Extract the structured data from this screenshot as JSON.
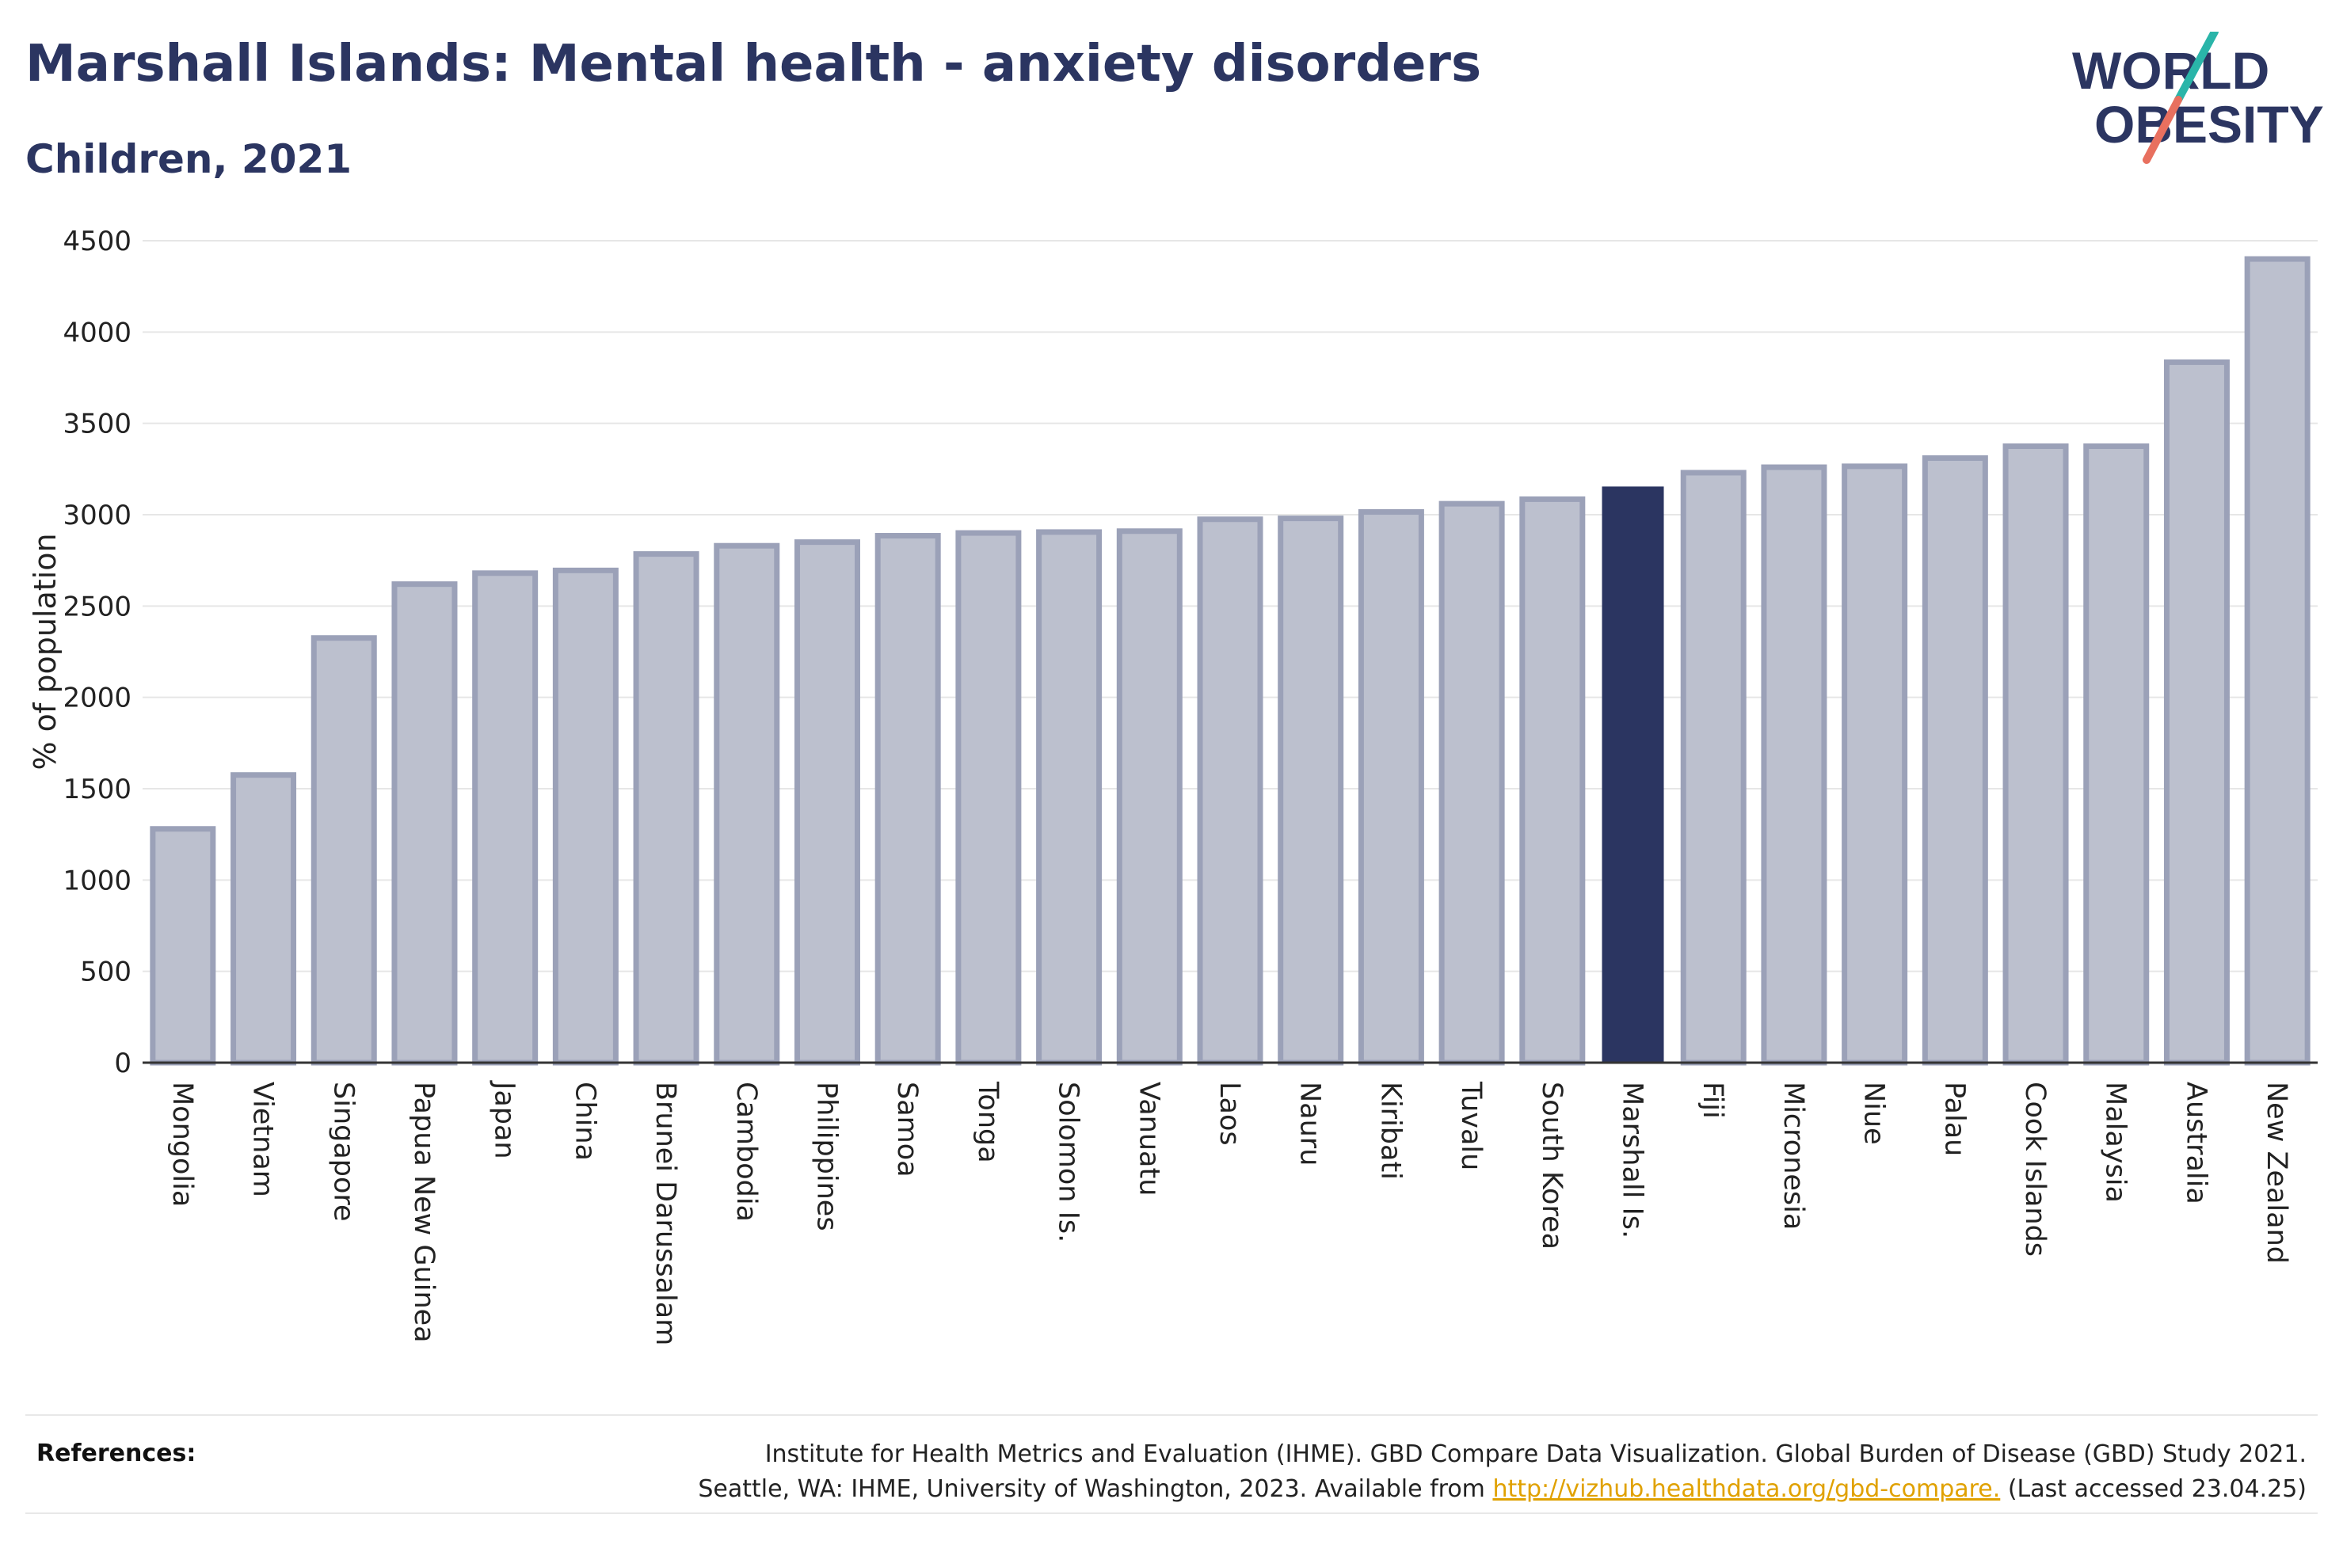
{
  "title": "Marshall Islands: Mental health - anxiety disorders",
  "subtitle": "Children, 2021",
  "logo": {
    "line1": "WORLD",
    "line2": "OBESITY",
    "accent_teal": "#2ab5a9",
    "accent_coral": "#e8705f"
  },
  "colors": {
    "bar": "#bcc0ce",
    "bar_stroke": "#9ba1b8",
    "highlight": "#2b3561",
    "grid": "#e6e6e6",
    "axis": "#333333"
  },
  "chart_data": {
    "type": "bar",
    "ylabel": "% of population",
    "ylim": [
      0,
      4500
    ],
    "yticks": [
      0,
      500,
      1000,
      1500,
      2000,
      2500,
      3000,
      3500,
      4000,
      4500
    ],
    "highlight": "Marshall Is.",
    "grid": true,
    "categories": [
      "Mongolia",
      "Vietnam",
      "Singapore",
      "Papua New Guinea",
      "Japan",
      "China",
      "Brunei Darussalam",
      "Cambodia",
      "Philippines",
      "Samoa",
      "Tonga",
      "Solomon Is.",
      "Vanuatu",
      "Laos",
      "Nauru",
      "Kiribati",
      "Tuvalu",
      "South Korea",
      "Marshall Is.",
      "Fiji",
      "Micronesia",
      "Niue",
      "Palau",
      "Cook Islands",
      "Malaysia",
      "Australia",
      "New Zealand"
    ],
    "values": [
      1280,
      1575,
      2325,
      2620,
      2680,
      2695,
      2785,
      2830,
      2850,
      2885,
      2900,
      2905,
      2910,
      2975,
      2980,
      3015,
      3060,
      3085,
      3150,
      3230,
      3260,
      3265,
      3310,
      3375,
      3375,
      3835,
      4400
    ]
  },
  "references": {
    "label": "References:",
    "line1": "Institute for Health Metrics and Evaluation (IHME). GBD Compare Data Visualization. Global Burden of Disease (GBD) Study 2021.",
    "line2_prefix": "Seattle, WA: IHME, University of Washington, 2023. Available from ",
    "link": "http://vizhub.healthdata.org/gbd-compare.",
    "line2_suffix": " (Last accessed 23.04.25)"
  }
}
